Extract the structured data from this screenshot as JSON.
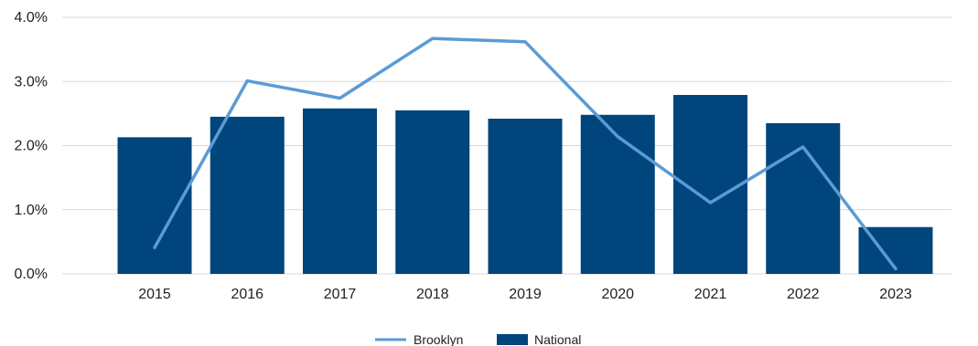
{
  "chart_data": {
    "type": "bar",
    "categories": [
      "2015",
      "2016",
      "2017",
      "2018",
      "2019",
      "2020",
      "2021",
      "2022",
      "2023"
    ],
    "series": [
      {
        "name": "National",
        "type": "bar",
        "values": [
          2.13,
          2.45,
          2.58,
          2.55,
          2.42,
          2.48,
          2.79,
          2.35,
          0.73
        ]
      },
      {
        "name": "Brooklyn",
        "type": "line",
        "values": [
          0.41,
          3.01,
          2.74,
          3.67,
          3.62,
          2.14,
          1.11,
          1.98,
          0.08
        ]
      }
    ],
    "y_ticks": [
      "0.0%",
      "1.0%",
      "2.0%",
      "3.0%",
      "4.0%"
    ],
    "ylim": [
      0,
      4
    ],
    "grid": true,
    "legend": {
      "position": "bottom-center",
      "entries": [
        "Brooklyn",
        "National"
      ]
    },
    "colors": {
      "bar": "#00457c",
      "line": "#5b9bd5",
      "grid": "#d9d9d9"
    }
  }
}
